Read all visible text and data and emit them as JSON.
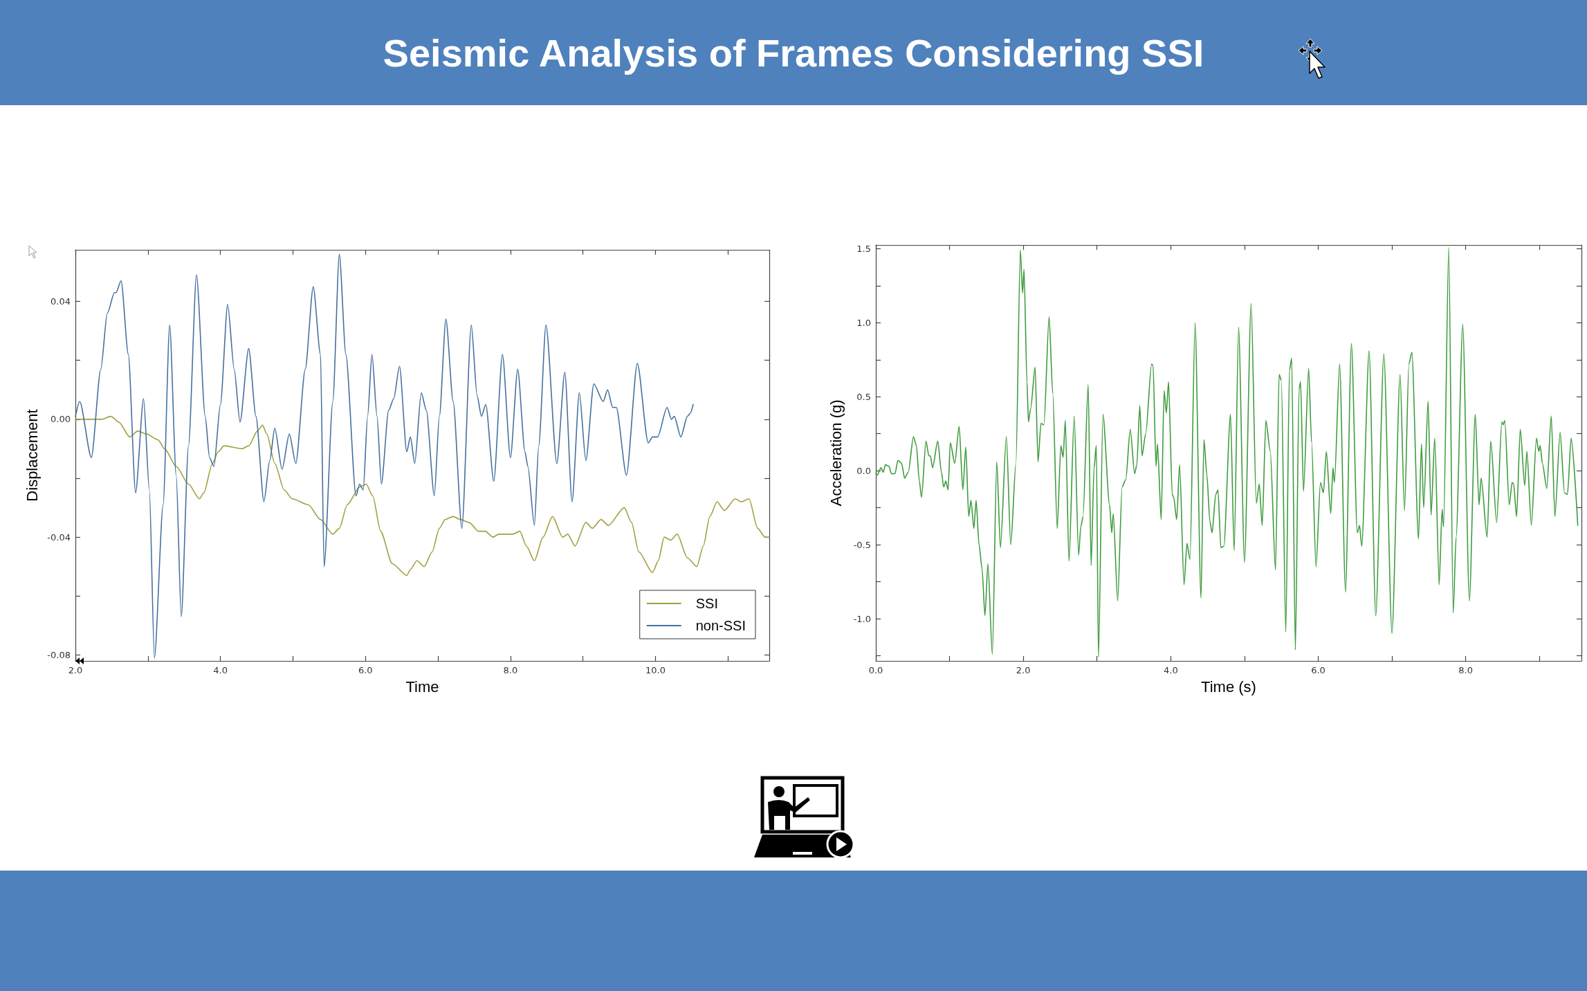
{
  "chart_data": [
    {
      "type": "line",
      "title": "Seismic Analysis of Frames Considering SSI",
      "xlabel": "Time",
      "ylabel": "Displacement",
      "xlim": [
        2,
        11.57
      ],
      "xticks": [
        {
          "value": 2,
          "label": "2.0"
        },
        {
          "value": 3,
          "label": null
        },
        {
          "value": 4,
          "label": "4.0"
        },
        {
          "value": 5,
          "label": null
        },
        {
          "value": 6,
          "label": "6.0"
        },
        {
          "value": 7,
          "label": null
        },
        {
          "value": 8,
          "label": "8.0"
        },
        {
          "value": 9,
          "label": null
        },
        {
          "value": 10,
          "label": "10.0"
        },
        {
          "value": 11,
          "label": null
        }
      ],
      "ylim": [
        -0.082,
        0.0575
      ],
      "yticks": [
        {
          "value": -0.08,
          "label": "-0.08"
        },
        {
          "value": -0.06,
          "label": null
        },
        -0.04,
        {
          "value": -0.02,
          "label": null
        },
        {
          "value": 0,
          "label": "0.00"
        },
        {
          "value": 0.02,
          "label": null
        },
        0.04
      ],
      "legend": "bottom right",
      "series": [
        {
          "name": "SSI",
          "color": "#a0a040",
          "x": [
            2.0,
            2.36,
            2.49,
            2.6,
            2.75,
            2.86,
            2.98,
            3.14,
            3.23,
            3.39,
            3.56,
            3.71,
            3.77,
            3.89,
            3.97,
            4.05,
            4.3,
            4.39,
            4.51,
            4.58,
            4.64,
            4.75,
            4.88,
            4.99,
            5.21,
            5.38,
            5.55,
            5.64,
            5.75,
            5.92,
            6.01,
            6.1,
            6.21,
            6.37,
            6.57,
            6.62,
            6.71,
            6.81,
            6.92,
            7.02,
            7.1,
            7.21,
            7.31,
            7.43,
            7.56,
            7.65,
            7.76,
            7.84,
            7.93,
            8.03,
            8.13,
            8.22,
            8.33,
            8.45,
            8.58,
            8.72,
            8.79,
            8.89,
            9.04,
            9.13,
            9.25,
            9.35,
            9.57,
            9.67,
            9.77,
            9.96,
            10.04,
            10.12,
            10.21,
            10.3,
            10.44,
            10.57,
            10.66,
            10.75,
            10.85,
            10.95,
            11.1,
            11.18,
            11.29,
            11.41,
            11.51,
            11.57
          ],
          "values": [
            0,
            0,
            0.001,
            -0.001,
            -0.006,
            -0.004,
            -0.005,
            -0.007,
            -0.01,
            -0.016,
            -0.022,
            -0.027,
            -0.025,
            -0.015,
            -0.011,
            -0.009,
            -0.01,
            -0.009,
            -0.004,
            -0.002,
            -0.005,
            -0.015,
            -0.024,
            -0.027,
            -0.029,
            -0.034,
            -0.039,
            -0.037,
            -0.029,
            -0.023,
            -0.022,
            -0.026,
            -0.038,
            -0.049,
            -0.053,
            -0.051,
            -0.048,
            -0.05,
            -0.045,
            -0.037,
            -0.034,
            -0.033,
            -0.034,
            -0.035,
            -0.038,
            -0.038,
            -0.04,
            -0.039,
            -0.039,
            -0.039,
            -0.038,
            -0.043,
            -0.048,
            -0.04,
            -0.033,
            -0.04,
            -0.039,
            -0.043,
            -0.035,
            -0.037,
            -0.034,
            -0.036,
            -0.03,
            -0.035,
            -0.045,
            -0.052,
            -0.048,
            -0.04,
            -0.041,
            -0.039,
            -0.047,
            -0.05,
            -0.043,
            -0.033,
            -0.028,
            -0.031,
            -0.027,
            -0.028,
            -0.027,
            -0.037,
            -0.04,
            -0.04
          ]
        },
        {
          "name": "non-SSI",
          "color": "#44709f",
          "x": [
            2.0,
            2.06,
            2.22,
            2.35,
            2.44,
            2.54,
            2.56,
            2.63,
            2.73,
            2.83,
            2.94,
            3.02,
            3.09,
            3.21,
            3.3,
            3.39,
            3.46,
            3.56,
            3.67,
            3.79,
            3.85,
            3.91,
            4.0,
            4.1,
            4.19,
            4.27,
            4.39,
            4.49,
            4.6,
            4.68,
            4.75,
            4.85,
            4.95,
            5.04,
            5.17,
            5.28,
            5.38,
            5.43,
            5.55,
            5.64,
            5.73,
            5.87,
            5.92,
            5.97,
            6.03,
            6.09,
            6.16,
            6.22,
            6.32,
            6.39,
            6.47,
            6.57,
            6.62,
            6.68,
            6.77,
            6.84,
            6.95,
            7.02,
            7.11,
            7.21,
            7.33,
            7.46,
            7.54,
            7.6,
            7.66,
            7.77,
            7.89,
            8.0,
            8.1,
            8.2,
            8.24,
            8.33,
            8.39,
            8.49,
            8.64,
            8.75,
            8.85,
            8.95,
            9.04,
            9.15,
            9.28,
            9.34,
            9.41,
            9.46,
            9.6,
            9.75,
            9.9,
            9.96,
            10.03,
            10.16,
            10.22,
            10.26,
            10.35,
            10.44,
            10.48,
            10.52
          ],
          "values": [
            0.001,
            0.006,
            -0.013,
            0.017,
            0.036,
            0.043,
            0.043,
            0.047,
            0.022,
            -0.025,
            0.007,
            -0.024,
            -0.081,
            -0.029,
            0.032,
            -0.019,
            -0.067,
            -0.009,
            0.049,
            0.001,
            -0.013,
            -0.016,
            0.005,
            0.039,
            0.017,
            -0.001,
            0.024,
            0.001,
            -0.028,
            -0.014,
            -0.003,
            -0.017,
            -0.005,
            -0.015,
            0.017,
            0.045,
            0.022,
            -0.05,
            0.006,
            0.056,
            0.022,
            -0.026,
            -0.022,
            -0.024,
            0.001,
            0.022,
            0.001,
            -0.022,
            0.003,
            0.007,
            0.018,
            -0.011,
            -0.006,
            -0.015,
            0.009,
            0.003,
            -0.026,
            0.001,
            0.034,
            0.006,
            -0.037,
            0.032,
            0.008,
            0.001,
            0.005,
            -0.021,
            0.022,
            -0.013,
            0.017,
            -0.011,
            -0.016,
            -0.036,
            -0.009,
            0.032,
            -0.015,
            0.016,
            -0.028,
            0.009,
            -0.014,
            0.012,
            0.006,
            0.01,
            0.004,
            0.004,
            -0.019,
            0.019,
            -0.008,
            -0.006,
            -0.006,
            0.004,
            0,
            0.001,
            -0.006,
            0.001,
            0.002,
            0.005
          ]
        }
      ]
    },
    {
      "type": "line",
      "xlabel": "Time (s)",
      "ylabel": "Acceleration (g)",
      "xlim": [
        0,
        9.57
      ],
      "xticks": [
        {
          "value": 0,
          "label": "0.0"
        },
        {
          "value": 1,
          "label": null
        },
        {
          "value": 2,
          "label": "2.0"
        },
        {
          "value": 3,
          "label": null
        },
        {
          "value": 4,
          "label": "4.0"
        },
        {
          "value": 5,
          "label": null
        },
        {
          "value": 6,
          "label": "6.0"
        },
        {
          "value": 7,
          "label": null
        },
        {
          "value": 8,
          "label": "8.0"
        },
        {
          "value": 9,
          "label": null
        }
      ],
      "ylim": [
        -1.285,
        1.525
      ],
      "yticks": [
        {
          "value": -1.25,
          "label": null
        },
        {
          "value": -1,
          "label": "-1.0"
        },
        {
          "value": -0.75,
          "label": null
        },
        -0.5,
        {
          "value": -0.25,
          "label": null
        },
        {
          "value": 0,
          "label": "0.0"
        },
        {
          "value": 0.25,
          "label": null
        },
        0.5,
        {
          "value": 0.75,
          "label": null
        },
        {
          "value": 1,
          "label": "1.0"
        },
        {
          "value": 1.25,
          "label": null
        },
        1.5
      ],
      "series": [
        {
          "color": "#3d9b3d",
          "x": [
            0,
            0.02,
            0.07,
            0.1,
            0.13,
            0.18,
            0.21,
            0.26,
            0.3,
            0.35,
            0.39,
            0.44,
            0.51,
            0.55,
            0.59,
            0.62,
            0.68,
            0.72,
            0.74,
            0.77,
            0.84,
            0.89,
            0.92,
            0.95,
            0.98,
            1.01,
            1.07,
            1.13,
            1.18,
            1.22,
            1.26,
            1.29,
            1.33,
            1.36,
            1.4,
            1.44,
            1.48,
            1.52,
            1.58,
            1.64,
            1.69,
            1.77,
            1.83,
            1.9,
            1.96,
            1.99,
            2.01,
            2.05,
            2.07,
            2.1,
            2.16,
            2.2,
            2.24,
            2.28,
            2.35,
            2.4,
            2.46,
            2.51,
            2.54,
            2.57,
            2.62,
            2.69,
            2.75,
            2.78,
            2.81,
            2.88,
            2.92,
            2.96,
            2.99,
            3.02,
            3.08,
            3.17,
            3.2,
            3.22,
            3.28,
            3.34,
            3.39,
            3.45,
            3.51,
            3.54,
            3.58,
            3.61,
            3.66,
            3.74,
            3.76,
            3.8,
            3.82,
            3.87,
            3.91,
            3.94,
            3.97,
            4.02,
            4.04,
            4.08,
            4.12,
            4.18,
            4.22,
            4.26,
            4.33,
            4.41,
            4.45,
            4.49,
            4.53,
            4.56,
            4.61,
            4.64,
            4.68,
            4.72,
            4.81,
            4.86,
            4.92,
            5.0,
            5.09,
            5.16,
            5.2,
            5.24,
            5.29,
            5.35,
            5.42,
            5.47,
            5.5,
            5.56,
            5.61,
            5.64,
            5.69,
            5.74,
            5.76,
            5.8,
            5.87,
            5.91,
            5.97,
            6.03,
            6.07,
            6.11,
            6.17,
            6.2,
            6.22,
            6.29,
            6.37,
            6.45,
            6.53,
            6.56,
            6.59,
            6.69,
            6.78,
            6.89,
            7.0,
            7.11,
            7.17,
            7.23,
            7.27,
            7.36,
            7.4,
            7.43,
            7.49,
            7.53,
            7.58,
            7.64,
            7.68,
            7.7,
            7.77,
            7.83,
            7.87,
            7.96,
            8.05,
            8.13,
            8.18,
            8.21,
            8.29,
            8.34,
            8.42,
            8.49,
            8.51,
            8.53,
            8.59,
            8.63,
            8.65,
            8.69,
            8.74,
            8.8,
            8.83,
            8.89,
            8.96,
            8.99,
            9.01,
            9.04,
            9.1,
            9.16,
            9.21,
            9.28,
            9.34,
            9.38,
            9.43,
            9.52
          ],
          "values": [
            -0.02,
            -0.03,
            0.02,
            -0.01,
            0.04,
            0.03,
            -0.02,
            -0.02,
            0.07,
            0.05,
            -0.05,
            -0.01,
            0.23,
            0.17,
            -0.07,
            -0.18,
            0.2,
            0.1,
            0.1,
            0.02,
            0.2,
            -0.01,
            -0.11,
            -0.07,
            -0.13,
            0.19,
            0.05,
            0.3,
            -0.13,
            0.16,
            -0.31,
            -0.2,
            -0.39,
            -0.2,
            -0.5,
            -0.66,
            -0.98,
            -0.63,
            -1.24,
            0.06,
            -0.52,
            0.23,
            -0.5,
            0.05,
            1.49,
            1.2,
            1.36,
            0.6,
            0.33,
            0.42,
            0.7,
            0.06,
            0.32,
            0.31,
            1.04,
            0.52,
            -0.39,
            0.17,
            0.09,
            0.34,
            -0.61,
            0.37,
            -0.57,
            -0.38,
            -0.31,
            0.58,
            -0.64,
            0.02,
            0.17,
            -1.26,
            0.38,
            -0.23,
            -0.42,
            -0.29,
            -0.88,
            -0.11,
            -0.06,
            0.28,
            -0.02,
            0.04,
            0.44,
            0.1,
            0.25,
            0.72,
            0.71,
            0.03,
            0.18,
            -0.33,
            0.54,
            0.39,
            0.6,
            -0.16,
            -0.18,
            -0.33,
            0.04,
            -0.77,
            -0.49,
            -0.6,
            1.0,
            -0.86,
            0.21,
            -0.03,
            -0.34,
            -0.42,
            -0.16,
            -0.13,
            -0.52,
            -0.51,
            0.38,
            -0.54,
            0.97,
            -0.62,
            1.13,
            -0.22,
            -0.09,
            -0.37,
            0.34,
            0.13,
            -0.67,
            0.65,
            0.61,
            -1.09,
            0.68,
            0.76,
            -1.21,
            0.55,
            0.6,
            -0.14,
            0.69,
            0.19,
            -0.65,
            -0.08,
            -0.15,
            0.13,
            -0.29,
            0.02,
            -0.08,
            0.72,
            -0.82,
            0.86,
            -0.42,
            -0.37,
            -0.51,
            0.81,
            -0.98,
            0.79,
            -1.1,
            0.65,
            -0.27,
            0.72,
            0.8,
            -0.46,
            0.18,
            -0.25,
            0.47,
            -0.3,
            0.22,
            -0.77,
            -0.26,
            -0.38,
            1.51,
            -0.96,
            -0.45,
            0.99,
            -0.88,
            0.38,
            -0.23,
            -0.05,
            -0.45,
            0.2,
            -0.35,
            0.33,
            0.31,
            0.34,
            -0.23,
            -0.08,
            -0.09,
            -0.31,
            0.28,
            -0.1,
            0.13,
            -0.37,
            0.22,
            0.13,
            0.17,
            0.05,
            -0.12,
            0.37,
            -0.31,
            0.26,
            -0.15,
            -0.16,
            0.22,
            -0.37
          ]
        }
      ]
    }
  ]
}
